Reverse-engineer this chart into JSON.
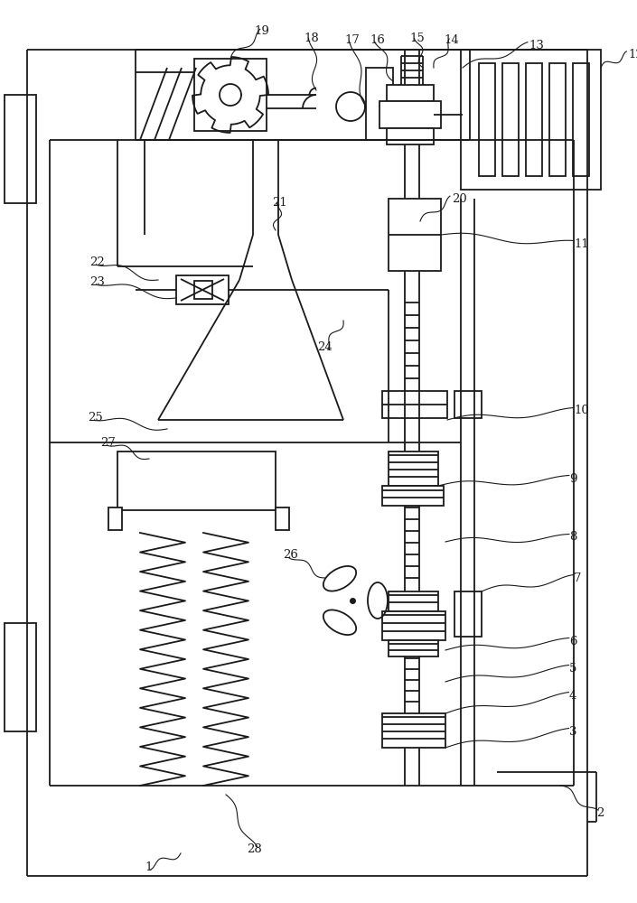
{
  "fig_width": 7.05,
  "fig_height": 10.0,
  "dpi": 100,
  "bg_color": "#ffffff",
  "lc": "#1a1a1a",
  "lw": 1.3
}
